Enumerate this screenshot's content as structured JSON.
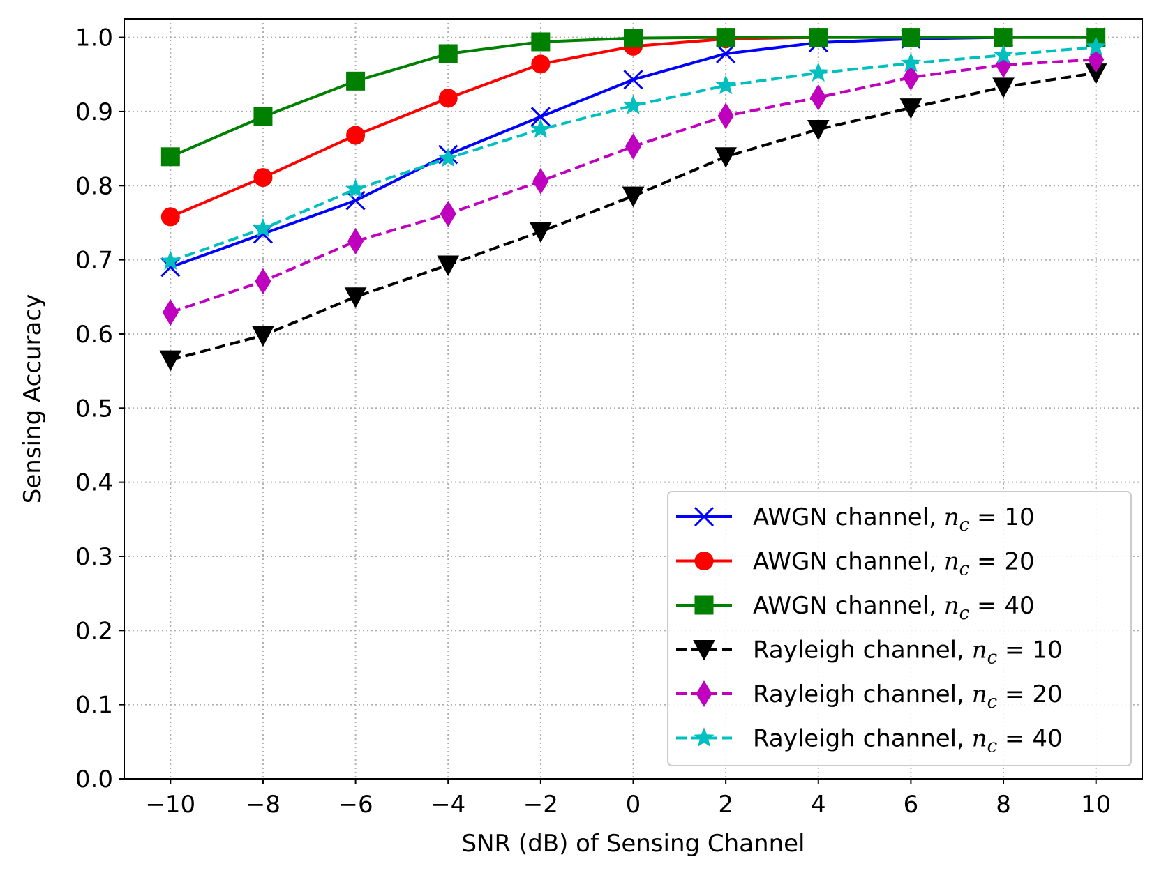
{
  "chart_data": {
    "type": "line",
    "title": "",
    "xlabel": "SNR (dB) of Sensing Channel",
    "ylabel": "Sensing Accuracy",
    "xlim": [
      -11,
      11
    ],
    "ylim": [
      0.0,
      1.025
    ],
    "grid": true,
    "legend_position": "bottom-right",
    "x": [
      -10,
      -8,
      -6,
      -4,
      -2,
      0,
      2,
      4,
      6,
      8,
      10
    ],
    "x_tick_labels": [
      "−10",
      "−8",
      "−6",
      "−4",
      "−2",
      "0",
      "2",
      "4",
      "6",
      "8",
      "10"
    ],
    "y_ticks": [
      0.0,
      0.1,
      0.2,
      0.3,
      0.4,
      0.5,
      0.6,
      0.7,
      0.8,
      0.9,
      1.0
    ],
    "y_tick_labels": [
      "0.0",
      "0.1",
      "0.2",
      "0.3",
      "0.4",
      "0.5",
      "0.6",
      "0.7",
      "0.8",
      "0.9",
      "1.0"
    ],
    "series": [
      {
        "name": "AWGN channel, n_c = 10",
        "label_prefix": "AWGN channel, ",
        "label_var": "n",
        "label_sub": "c",
        "label_eq": " = 10",
        "color": "#0000ff",
        "line_style": "solid",
        "marker": "x",
        "values": [
          0.69,
          0.735,
          0.78,
          0.842,
          0.893,
          0.943,
          0.978,
          0.993,
          0.998,
          1.0,
          1.0
        ]
      },
      {
        "name": "AWGN channel, n_c = 20",
        "label_prefix": "AWGN channel, ",
        "label_var": "n",
        "label_sub": "c",
        "label_eq": " = 20",
        "color": "#ff0000",
        "line_style": "solid",
        "marker": "circle",
        "values": [
          0.758,
          0.811,
          0.868,
          0.918,
          0.964,
          0.988,
          0.998,
          1.0,
          1.0,
          1.0,
          1.0
        ]
      },
      {
        "name": "AWGN channel, n_c = 40",
        "label_prefix": "AWGN channel, ",
        "label_var": "n",
        "label_sub": "c",
        "label_eq": " = 40",
        "color": "#008000",
        "line_style": "solid",
        "marker": "square",
        "values": [
          0.839,
          0.893,
          0.941,
          0.978,
          0.994,
          0.999,
          1.0,
          1.0,
          1.0,
          1.0,
          1.0
        ]
      },
      {
        "name": "Rayleigh channel, n_c = 10",
        "label_prefix": "Rayleigh channel, ",
        "label_var": "n",
        "label_sub": "c",
        "label_eq": " = 10",
        "color": "#000000",
        "line_style": "dashed",
        "marker": "triangle-down",
        "values": [
          0.565,
          0.598,
          0.65,
          0.693,
          0.738,
          0.786,
          0.839,
          0.876,
          0.905,
          0.933,
          0.952
        ]
      },
      {
        "name": "Rayleigh channel, n_c = 20",
        "label_prefix": "Rayleigh channel, ",
        "label_var": "n",
        "label_sub": "c",
        "label_eq": " = 20",
        "color": "#bf00bf",
        "line_style": "dashed",
        "marker": "thin-diamond",
        "values": [
          0.629,
          0.671,
          0.725,
          0.762,
          0.806,
          0.853,
          0.894,
          0.919,
          0.946,
          0.963,
          0.97
        ]
      },
      {
        "name": "Rayleigh channel, n_c = 40",
        "label_prefix": "Rayleigh channel, ",
        "label_var": "n",
        "label_sub": "c",
        "label_eq": " = 40",
        "color": "#00bfbf",
        "line_style": "dashed",
        "marker": "star",
        "values": [
          0.698,
          0.742,
          0.795,
          0.837,
          0.876,
          0.908,
          0.935,
          0.952,
          0.965,
          0.976,
          0.987
        ]
      }
    ]
  }
}
